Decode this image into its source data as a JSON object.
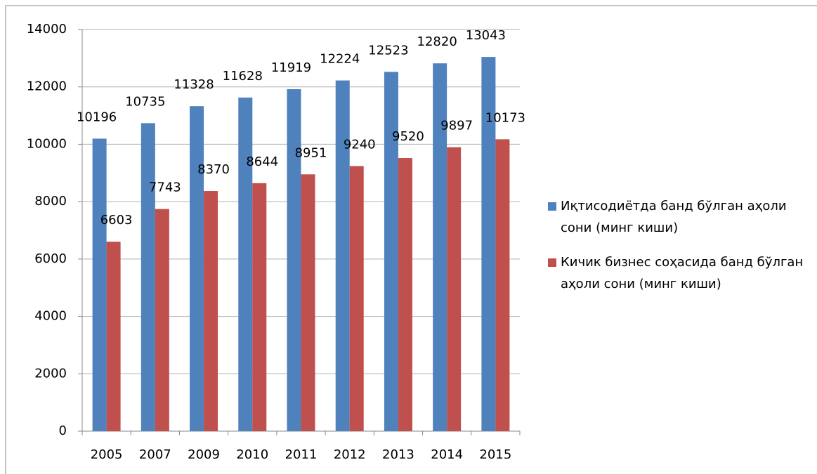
{
  "chart_data": {
    "type": "bar",
    "categories": [
      "2005",
      "2007",
      "2009",
      "2010",
      "2011",
      "2012",
      "2013",
      "2014",
      "2015"
    ],
    "series": [
      {
        "name": "Иқтисодиётда банд бўлган аҳоли сони (минг киши)",
        "color": "#4f81bd",
        "values": [
          10196,
          10735,
          11328,
          11628,
          11919,
          12224,
          12523,
          12820,
          13043
        ]
      },
      {
        "name": "Кичик бизнес соҳасида банд бўлган аҳоли сони (минг киши)",
        "color": "#c0504d",
        "values": [
          6603,
          7743,
          8370,
          8644,
          8951,
          9240,
          9520,
          9897,
          10173
        ]
      }
    ],
    "ylim": [
      0,
      14000
    ],
    "yticks": [
      0,
      2000,
      4000,
      6000,
      8000,
      10000,
      12000,
      14000
    ],
    "grid": true,
    "legend": "right"
  }
}
